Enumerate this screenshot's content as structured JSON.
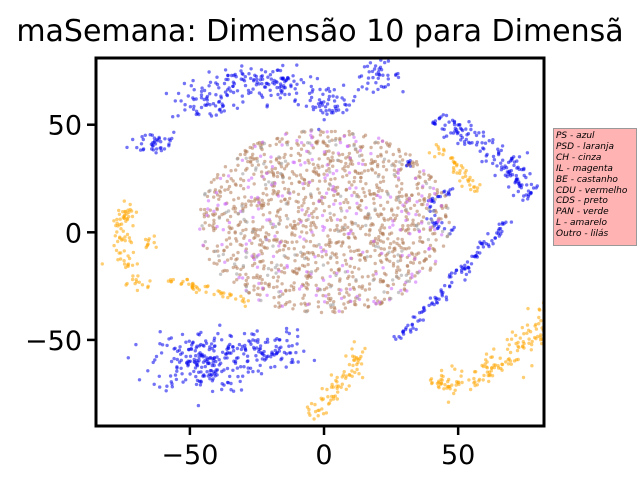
{
  "chart_data": {
    "type": "scatter",
    "title": "maSemana: Dimensão 10 para Dimensã",
    "xlabel": "",
    "ylabel": "",
    "xlim": [
      -85,
      82
    ],
    "ylim": [
      -90,
      81
    ],
    "x_ticks": [
      -50,
      0,
      50
    ],
    "x_tick_labels": [
      "−50",
      "0",
      "50"
    ],
    "y_ticks": [
      -50,
      0,
      50
    ],
    "y_tick_labels": [
      "−50",
      "0",
      "50"
    ],
    "grid": false,
    "legend_placement": "outside-right",
    "legend_entries": [
      "PS - azul",
      "PSD - laranja",
      "CH - cinza",
      "IL - magenta",
      "BE - castanho",
      "CDU - vermelho",
      "CDS - preto",
      "PAN - verde",
      "L - amarelo",
      "Outro - lilás"
    ],
    "legend_color": "#ffb3b3",
    "series": [
      {
        "color": "#0000ee",
        "clusters": [
          {
            "shape": "blob",
            "cx": -28,
            "cy": 70,
            "rx": 12,
            "ry": 6,
            "n": 70
          },
          {
            "shape": "blob",
            "cx": -45,
            "cy": 60,
            "rx": 10,
            "ry": 7,
            "n": 60
          },
          {
            "shape": "blob",
            "cx": -63,
            "cy": 42,
            "rx": 8,
            "ry": 5,
            "n": 40
          },
          {
            "shape": "blob",
            "cx": -15,
            "cy": 68,
            "rx": 10,
            "ry": 7,
            "n": 60
          },
          {
            "shape": "blob",
            "cx": 3,
            "cy": 60,
            "rx": 8,
            "ry": 6,
            "n": 50
          },
          {
            "shape": "blob",
            "cx": 20,
            "cy": 73,
            "rx": 7,
            "ry": 5,
            "n": 40
          },
          {
            "shape": "arc",
            "cx": 20,
            "cy": -5,
            "r": 60,
            "a0": 20,
            "a1": 70,
            "w": 3,
            "n": 150
          },
          {
            "shape": "line",
            "x0": 28,
            "y0": -50,
            "x1": 68,
            "y1": 5,
            "w": 1.2,
            "n": 110
          },
          {
            "shape": "arc",
            "cx": 50,
            "cy": 10,
            "r": 10,
            "a0": 100,
            "a1": 260,
            "w": 1,
            "n": 40
          },
          {
            "shape": "blob",
            "cx": -45,
            "cy": -60,
            "rx": 16,
            "ry": 12,
            "n": 220
          },
          {
            "shape": "blob",
            "cx": -20,
            "cy": -55,
            "rx": 12,
            "ry": 8,
            "n": 80
          },
          {
            "shape": "blob",
            "cx": 32,
            "cy": 32,
            "rx": 2,
            "ry": 2,
            "n": 10
          }
        ]
      },
      {
        "color": "#ffa500",
        "clusters": [
          {
            "shape": "arc",
            "cx": -40,
            "cy": -5,
            "r": 36,
            "a0": 150,
            "a1": 220,
            "w": 2.2,
            "n": 80
          },
          {
            "shape": "line",
            "x0": -58,
            "y0": -22,
            "x1": -28,
            "y1": -32,
            "w": 1.2,
            "n": 45
          },
          {
            "shape": "line",
            "x0": 42,
            "y0": 40,
            "x1": 58,
            "y1": 18,
            "w": 1.2,
            "n": 45
          },
          {
            "shape": "arc",
            "cx": 30,
            "cy": -15,
            "r": 58,
            "a0": -80,
            "a1": -5,
            "w": 3.2,
            "n": 200
          },
          {
            "shape": "line",
            "x0": -5,
            "y0": -85,
            "x1": 12,
            "y1": -62,
            "w": 2,
            "n": 60
          },
          {
            "shape": "blob",
            "cx": 12,
            "cy": -58,
            "rx": 3,
            "ry": 4,
            "n": 15
          },
          {
            "shape": "blob",
            "cx": -65,
            "cy": -5,
            "rx": 3,
            "ry": 3,
            "n": 10
          }
        ]
      },
      {
        "color": "#b07a55",
        "clusters": [
          {
            "shape": "disc",
            "cx": 0,
            "cy": 5,
            "rx": 47,
            "ry": 43,
            "n": 1100
          }
        ]
      },
      {
        "color": "#cc66ff",
        "clusters": [
          {
            "shape": "disc",
            "cx": 0,
            "cy": 5,
            "rx": 47,
            "ry": 43,
            "n": 220
          }
        ]
      },
      {
        "color": "#9a9a9a",
        "clusters": [
          {
            "shape": "disc",
            "cx": 0,
            "cy": 5,
            "rx": 47,
            "ry": 43,
            "n": 150
          }
        ]
      }
    ]
  }
}
